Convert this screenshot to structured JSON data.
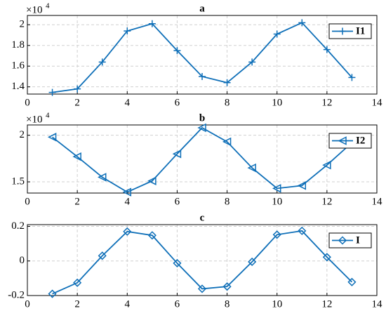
{
  "chart_data": [
    {
      "type": "line",
      "title": "a",
      "exponent": {
        "base": "×10",
        "power": "4"
      },
      "x": [
        1,
        2,
        3,
        4,
        5,
        6,
        7,
        8,
        9,
        10,
        11,
        12,
        13
      ],
      "series": [
        {
          "name": "I1",
          "color": "#0e6fb8",
          "marker": "plus",
          "values": [
            1.346,
            1.38,
            1.64,
            1.94,
            2.01,
            1.75,
            1.5,
            1.44,
            1.64,
            1.91,
            2.02,
            1.76,
            1.49
          ]
        }
      ],
      "xlim": [
        0,
        14
      ],
      "xticks": [
        0,
        2,
        4,
        6,
        8,
        10,
        12,
        14
      ],
      "ylim": [
        1.33,
        2.09
      ],
      "yticks": [
        1.4,
        1.6,
        1.8,
        2
      ],
      "grid": true,
      "legend": "upper-right"
    },
    {
      "type": "line",
      "title": "b",
      "exponent": {
        "base": "×10",
        "power": "4"
      },
      "x": [
        1,
        2,
        3,
        4,
        5,
        6,
        7,
        8,
        9,
        10,
        11,
        12,
        13
      ],
      "series": [
        {
          "name": "I2",
          "color": "#0e6fb8",
          "marker": "triangle-left",
          "values": [
            1.98,
            1.77,
            1.55,
            1.39,
            1.51,
            1.8,
            2.08,
            1.93,
            1.65,
            1.43,
            1.46,
            1.68,
            1.92
          ]
        }
      ],
      "xlim": [
        0,
        14
      ],
      "xticks": [
        0,
        2,
        4,
        6,
        8,
        10,
        12,
        14
      ],
      "ylim": [
        1.38,
        2.11
      ],
      "yticks": [
        1.5,
        2
      ],
      "grid": true,
      "legend": "upper-right"
    },
    {
      "type": "line",
      "title": "c",
      "x": [
        1,
        2,
        3,
        4,
        5,
        6,
        7,
        8,
        9,
        10,
        11,
        12,
        13
      ],
      "series": [
        {
          "name": "I",
          "color": "#0e6fb8",
          "marker": "diamond",
          "values": [
            -0.19,
            -0.126,
            0.03,
            0.17,
            0.148,
            -0.013,
            -0.161,
            -0.148,
            -0.005,
            0.152,
            0.174,
            0.022,
            -0.122
          ]
        }
      ],
      "xlim": [
        0,
        14
      ],
      "xticks": [
        0,
        2,
        4,
        6,
        8,
        10,
        12,
        14
      ],
      "ylim": [
        -0.2,
        0.21
      ],
      "yticks": [
        -0.2,
        0,
        0.2
      ],
      "grid": true,
      "legend": "upper-right"
    }
  ]
}
